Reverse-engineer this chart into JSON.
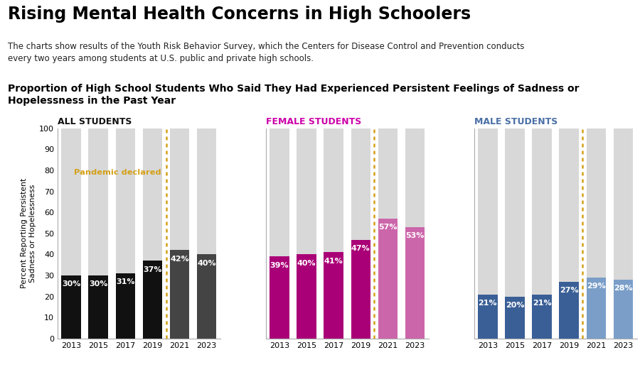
{
  "title": "Rising Mental Health Concerns in High Schoolers",
  "subtitle": "The charts show results of the Youth Risk Behavior Survey, which the Centers for Disease Control and Prevention conducts\nevery two years among students at U.S. public and private high schools.",
  "section_title": "Proportion of High School Students Who Said They Had Experienced Persistent Feelings of Sadness or\nHopelessness in the Past Year",
  "years": [
    2013,
    2015,
    2017,
    2019,
    2021,
    2023
  ],
  "all_students": [
    30,
    30,
    31,
    37,
    42,
    40
  ],
  "female_students": [
    39,
    40,
    41,
    47,
    57,
    53
  ],
  "male_students": [
    21,
    20,
    21,
    27,
    29,
    28
  ],
  "all_bar_color_pre": "#111111",
  "all_bar_color_post": "#444444",
  "female_bar_color_pre": "#aa0077",
  "female_bar_color_post": "#cc66aa",
  "male_bar_color_pre": "#3a5f96",
  "male_bar_color_post": "#7a9ec8",
  "bg_bar_color": "#d8d8d8",
  "pandemic_line_color": "#d4a017",
  "ylabel": "Percent Reporting Persistent\nSadness or Hopelessness",
  "ylim": [
    0,
    100
  ],
  "yticks": [
    0,
    10,
    20,
    30,
    40,
    50,
    60,
    70,
    80,
    90,
    100
  ],
  "subplot_titles": [
    "ALL STUDENTS",
    "FEMALE STUDENTS",
    "MALE STUDENTS"
  ],
  "subplot_title_colors": [
    "#111111",
    "#cc00aa",
    "#4a6fa5"
  ],
  "pandemic_label": "Pandemic declared",
  "title_fontsize": 17,
  "subtitle_fontsize": 8.5,
  "section_fontsize": 10
}
